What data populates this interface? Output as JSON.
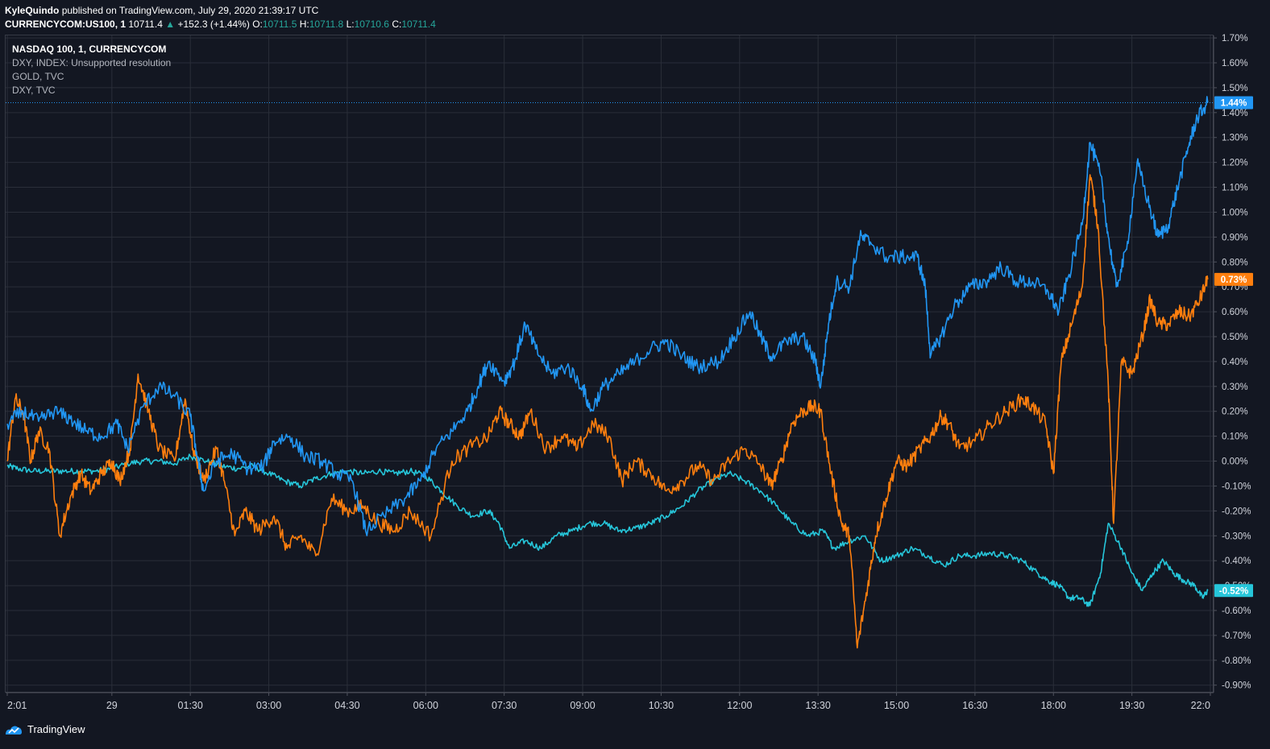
{
  "header": {
    "author": "KyleQuindo",
    "published_text": "published on TradingView.com, July 29, 2020 21:39:17 UTC",
    "symbol": "CURRENCYCOM:US100, 1",
    "last": "10711.4",
    "change": "+152.3 (+1.44%)",
    "o_label": "O:",
    "o_val": "10711.5",
    "h_label": "H:",
    "h_val": "10711.8",
    "l_label": "L:",
    "l_val": "10710.6",
    "c_label": "C:",
    "c_val": "10711.4"
  },
  "legend": {
    "line0": "NASDAQ 100, 1, CURRENCYCOM",
    "line1": "DXY, INDEX: Unsupported resolution",
    "line2": "GOLD, TVC",
    "line3": "DXY, TVC"
  },
  "footer": {
    "brand": "TradingView",
    "logo_icon": "tradingview-logo-icon"
  },
  "chart_data": {
    "type": "line",
    "y_unit": "%",
    "ylim": [
      -0.93,
      1.71
    ],
    "y_ticks": [
      1.7,
      1.6,
      1.5,
      1.4,
      1.3,
      1.2,
      1.1,
      1.0,
      0.9,
      0.8,
      0.7,
      0.6,
      0.5,
      0.4,
      0.3,
      0.2,
      0.1,
      0.0,
      -0.1,
      -0.2,
      -0.3,
      -0.4,
      -0.5,
      -0.6,
      -0.7,
      -0.8,
      -0.9
    ],
    "y_tick_labels": [
      "1.70%",
      "1.60%",
      "1.50%",
      "1.40%",
      "1.30%",
      "1.20%",
      "1.10%",
      "1.00%",
      "0.90%",
      "0.80%",
      "0.70%",
      "0.60%",
      "0.50%",
      "0.40%",
      "0.30%",
      "0.20%",
      "0.10%",
      "0.00%",
      "-0.10%",
      "-0.20%",
      "-0.30%",
      "-0.40%",
      "-0.50%",
      "-0.60%",
      "-0.70%",
      "-0.80%",
      "-0.90%"
    ],
    "x_tick_labels": [
      "2:01",
      "29",
      "01:30",
      "03:00",
      "04:30",
      "06:00",
      "07:30",
      "09:00",
      "10:30",
      "12:00",
      "13:30",
      "15:00",
      "16:30",
      "18:00",
      "19:30",
      "22:0"
    ],
    "x_tick_hours": [
      0,
      2,
      3.5,
      5,
      6.5,
      8,
      9.5,
      11,
      12.5,
      14,
      15.5,
      17,
      18.5,
      20,
      21.5,
      23
    ],
    "x_range_hours": [
      0,
      23
    ],
    "grid": true,
    "series": [
      {
        "name": "NASDAQ 100",
        "color": "#2196f3",
        "last_label": "1.44%",
        "points": [
          [
            0,
            0.15
          ],
          [
            0.3,
            0.2
          ],
          [
            0.6,
            0.16
          ],
          [
            0.9,
            0.2
          ],
          [
            1.2,
            0.17
          ],
          [
            1.5,
            0.12
          ],
          [
            1.8,
            0.1
          ],
          [
            2.1,
            0.15
          ],
          [
            2.3,
            0.05
          ],
          [
            2.6,
            0.22
          ],
          [
            2.9,
            0.3
          ],
          [
            3.2,
            0.26
          ],
          [
            3.5,
            0.18
          ],
          [
            3.65,
            0.0
          ],
          [
            3.75,
            -0.12
          ],
          [
            4.0,
            0.0
          ],
          [
            4.3,
            0.03
          ],
          [
            4.6,
            -0.03
          ],
          [
            4.9,
            -0.02
          ],
          [
            5.1,
            0.08
          ],
          [
            5.4,
            0.1
          ],
          [
            5.7,
            0.02
          ],
          [
            6.0,
            0.0
          ],
          [
            6.3,
            -0.05
          ],
          [
            6.6,
            -0.08
          ],
          [
            6.85,
            -0.28
          ],
          [
            7.2,
            -0.22
          ],
          [
            7.6,
            -0.15
          ],
          [
            7.9,
            -0.08
          ],
          [
            8.2,
            0.05
          ],
          [
            8.5,
            0.12
          ],
          [
            8.8,
            0.2
          ],
          [
            9.0,
            0.3
          ],
          [
            9.2,
            0.4
          ],
          [
            9.5,
            0.32
          ],
          [
            9.7,
            0.4
          ],
          [
            9.9,
            0.55
          ],
          [
            10.1,
            0.45
          ],
          [
            10.4,
            0.35
          ],
          [
            10.7,
            0.38
          ],
          [
            11.0,
            0.3
          ],
          [
            11.15,
            0.2
          ],
          [
            11.4,
            0.3
          ],
          [
            11.7,
            0.35
          ],
          [
            12.0,
            0.4
          ],
          [
            12.3,
            0.45
          ],
          [
            12.6,
            0.48
          ],
          [
            12.9,
            0.42
          ],
          [
            13.2,
            0.38
          ],
          [
            13.6,
            0.4
          ],
          [
            13.9,
            0.5
          ],
          [
            14.2,
            0.6
          ],
          [
            14.4,
            0.5
          ],
          [
            14.6,
            0.42
          ],
          [
            14.9,
            0.48
          ],
          [
            15.2,
            0.5
          ],
          [
            15.45,
            0.4
          ],
          [
            15.55,
            0.3
          ],
          [
            15.7,
            0.55
          ],
          [
            15.85,
            0.72
          ],
          [
            16.1,
            0.7
          ],
          [
            16.3,
            0.9
          ],
          [
            16.5,
            0.88
          ],
          [
            16.8,
            0.82
          ],
          [
            17.1,
            0.82
          ],
          [
            17.4,
            0.82
          ],
          [
            17.55,
            0.7
          ],
          [
            17.65,
            0.42
          ],
          [
            17.85,
            0.5
          ],
          [
            18.1,
            0.62
          ],
          [
            18.4,
            0.7
          ],
          [
            18.7,
            0.72
          ],
          [
            19.0,
            0.78
          ],
          [
            19.3,
            0.72
          ],
          [
            19.6,
            0.72
          ],
          [
            19.9,
            0.68
          ],
          [
            20.1,
            0.6
          ],
          [
            20.3,
            0.75
          ],
          [
            20.55,
            0.95
          ],
          [
            20.7,
            1.28
          ],
          [
            20.9,
            1.15
          ],
          [
            21.05,
            0.9
          ],
          [
            21.2,
            0.7
          ],
          [
            21.4,
            0.85
          ],
          [
            21.6,
            1.2
          ],
          [
            21.8,
            1.05
          ],
          [
            22.0,
            0.9
          ],
          [
            22.2,
            0.95
          ],
          [
            22.4,
            1.12
          ],
          [
            22.6,
            1.28
          ],
          [
            22.75,
            1.38
          ],
          [
            22.95,
            1.44
          ]
        ]
      },
      {
        "name": "GOLD",
        "color": "#ff7f0e",
        "last_label": "0.73%",
        "points": [
          [
            0,
            0.0
          ],
          [
            0.15,
            0.25
          ],
          [
            0.3,
            0.2
          ],
          [
            0.45,
            0.0
          ],
          [
            0.6,
            0.12
          ],
          [
            0.8,
            0.05
          ],
          [
            1.0,
            -0.3
          ],
          [
            1.2,
            -0.15
          ],
          [
            1.4,
            -0.05
          ],
          [
            1.6,
            -0.12
          ],
          [
            1.8,
            -0.05
          ],
          [
            2.0,
            0.0
          ],
          [
            2.15,
            -0.08
          ],
          [
            2.35,
            0.05
          ],
          [
            2.5,
            0.35
          ],
          [
            2.7,
            0.2
          ],
          [
            2.9,
            0.05
          ],
          [
            3.2,
            0.0
          ],
          [
            3.4,
            0.25
          ],
          [
            3.55,
            0.05
          ],
          [
            3.75,
            -0.08
          ],
          [
            4.0,
            0.05
          ],
          [
            4.15,
            -0.08
          ],
          [
            4.35,
            -0.3
          ],
          [
            4.55,
            -0.2
          ],
          [
            4.8,
            -0.28
          ],
          [
            5.1,
            -0.22
          ],
          [
            5.35,
            -0.35
          ],
          [
            5.6,
            -0.3
          ],
          [
            5.9,
            -0.38
          ],
          [
            6.2,
            -0.15
          ],
          [
            6.5,
            -0.2
          ],
          [
            6.8,
            -0.18
          ],
          [
            7.1,
            -0.25
          ],
          [
            7.4,
            -0.28
          ],
          [
            7.7,
            -0.2
          ],
          [
            8.1,
            -0.3
          ],
          [
            8.5,
            0.0
          ],
          [
            8.8,
            0.05
          ],
          [
            9.2,
            0.1
          ],
          [
            9.4,
            0.2
          ],
          [
            9.6,
            0.15
          ],
          [
            9.8,
            0.1
          ],
          [
            10.0,
            0.2
          ],
          [
            10.3,
            0.05
          ],
          [
            10.6,
            0.1
          ],
          [
            10.9,
            0.05
          ],
          [
            11.2,
            0.15
          ],
          [
            11.5,
            0.1
          ],
          [
            11.75,
            -0.08
          ],
          [
            12.0,
            0.0
          ],
          [
            12.3,
            -0.05
          ],
          [
            12.6,
            -0.12
          ],
          [
            12.9,
            -0.08
          ],
          [
            13.2,
            -0.02
          ],
          [
            13.5,
            -0.08
          ],
          [
            13.8,
            0.0
          ],
          [
            14.1,
            0.05
          ],
          [
            14.4,
            -0.02
          ],
          [
            14.6,
            -0.1
          ],
          [
            14.8,
            0.0
          ],
          [
            15.0,
            0.15
          ],
          [
            15.2,
            0.2
          ],
          [
            15.4,
            0.22
          ],
          [
            15.55,
            0.2
          ],
          [
            15.75,
            -0.05
          ],
          [
            15.95,
            -0.25
          ],
          [
            16.1,
            -0.3
          ],
          [
            16.25,
            -0.75
          ],
          [
            16.45,
            -0.5
          ],
          [
            16.6,
            -0.3
          ],
          [
            16.8,
            -0.15
          ],
          [
            17.0,
            0.0
          ],
          [
            17.2,
            -0.02
          ],
          [
            17.45,
            0.05
          ],
          [
            17.65,
            0.1
          ],
          [
            17.85,
            0.18
          ],
          [
            18.0,
            0.15
          ],
          [
            18.2,
            0.05
          ],
          [
            18.5,
            0.08
          ],
          [
            18.8,
            0.15
          ],
          [
            19.1,
            0.2
          ],
          [
            19.4,
            0.25
          ],
          [
            19.6,
            0.22
          ],
          [
            19.85,
            0.15
          ],
          [
            20.0,
            -0.05
          ],
          [
            20.15,
            0.4
          ],
          [
            20.35,
            0.55
          ],
          [
            20.55,
            0.7
          ],
          [
            20.7,
            1.15
          ],
          [
            20.85,
            0.95
          ],
          [
            21.05,
            0.3
          ],
          [
            21.15,
            -0.25
          ],
          [
            21.3,
            0.4
          ],
          [
            21.5,
            0.35
          ],
          [
            21.7,
            0.5
          ],
          [
            21.85,
            0.65
          ],
          [
            22.0,
            0.55
          ],
          [
            22.2,
            0.55
          ],
          [
            22.4,
            0.6
          ],
          [
            22.6,
            0.58
          ],
          [
            22.8,
            0.65
          ],
          [
            22.95,
            0.73
          ]
        ]
      },
      {
        "name": "DXY",
        "color": "#26c6da",
        "last_label": "-0.52%",
        "points": [
          [
            0,
            -0.02
          ],
          [
            0.2,
            -0.03
          ],
          [
            0.5,
            -0.04
          ],
          [
            0.8,
            -0.04
          ],
          [
            1.1,
            -0.04
          ],
          [
            1.4,
            -0.04
          ],
          [
            1.7,
            -0.04
          ],
          [
            2.0,
            -0.03
          ],
          [
            2.3,
            -0.01
          ],
          [
            2.6,
            0.0
          ],
          [
            2.9,
            0.0
          ],
          [
            3.2,
            -0.01
          ],
          [
            3.5,
            0.02
          ],
          [
            3.8,
            0.0
          ],
          [
            4.1,
            -0.02
          ],
          [
            4.4,
            -0.03
          ],
          [
            4.7,
            -0.02
          ],
          [
            5.0,
            -0.05
          ],
          [
            5.3,
            -0.08
          ],
          [
            5.6,
            -0.1
          ],
          [
            5.9,
            -0.07
          ],
          [
            6.2,
            -0.05
          ],
          [
            6.5,
            -0.04
          ],
          [
            6.8,
            -0.05
          ],
          [
            7.1,
            -0.04
          ],
          [
            7.4,
            -0.05
          ],
          [
            7.7,
            -0.04
          ],
          [
            8.0,
            -0.06
          ],
          [
            8.3,
            -0.12
          ],
          [
            8.6,
            -0.18
          ],
          [
            8.9,
            -0.22
          ],
          [
            9.2,
            -0.2
          ],
          [
            9.4,
            -0.25
          ],
          [
            9.6,
            -0.35
          ],
          [
            9.9,
            -0.32
          ],
          [
            10.2,
            -0.35
          ],
          [
            10.5,
            -0.3
          ],
          [
            10.8,
            -0.28
          ],
          [
            11.1,
            -0.25
          ],
          [
            11.4,
            -0.25
          ],
          [
            11.7,
            -0.28
          ],
          [
            12.0,
            -0.27
          ],
          [
            12.3,
            -0.25
          ],
          [
            12.6,
            -0.22
          ],
          [
            12.9,
            -0.18
          ],
          [
            13.2,
            -0.12
          ],
          [
            13.5,
            -0.08
          ],
          [
            13.8,
            -0.05
          ],
          [
            14.1,
            -0.08
          ],
          [
            14.4,
            -0.12
          ],
          [
            14.7,
            -0.18
          ],
          [
            15.0,
            -0.25
          ],
          [
            15.3,
            -0.3
          ],
          [
            15.6,
            -0.28
          ],
          [
            15.8,
            -0.35
          ],
          [
            16.1,
            -0.32
          ],
          [
            16.4,
            -0.3
          ],
          [
            16.7,
            -0.4
          ],
          [
            17.0,
            -0.38
          ],
          [
            17.3,
            -0.35
          ],
          [
            17.6,
            -0.38
          ],
          [
            17.9,
            -0.42
          ],
          [
            18.2,
            -0.38
          ],
          [
            18.5,
            -0.38
          ],
          [
            18.8,
            -0.37
          ],
          [
            19.1,
            -0.38
          ],
          [
            19.4,
            -0.4
          ],
          [
            19.7,
            -0.45
          ],
          [
            19.9,
            -0.48
          ],
          [
            20.1,
            -0.5
          ],
          [
            20.3,
            -0.55
          ],
          [
            20.5,
            -0.55
          ],
          [
            20.7,
            -0.58
          ],
          [
            20.9,
            -0.45
          ],
          [
            21.05,
            -0.25
          ],
          [
            21.3,
            -0.35
          ],
          [
            21.5,
            -0.45
          ],
          [
            21.7,
            -0.52
          ],
          [
            21.9,
            -0.45
          ],
          [
            22.1,
            -0.4
          ],
          [
            22.3,
            -0.45
          ],
          [
            22.5,
            -0.48
          ],
          [
            22.7,
            -0.5
          ],
          [
            22.85,
            -0.55
          ],
          [
            22.95,
            -0.52
          ]
        ]
      }
    ],
    "price_line_value": 1.44
  }
}
